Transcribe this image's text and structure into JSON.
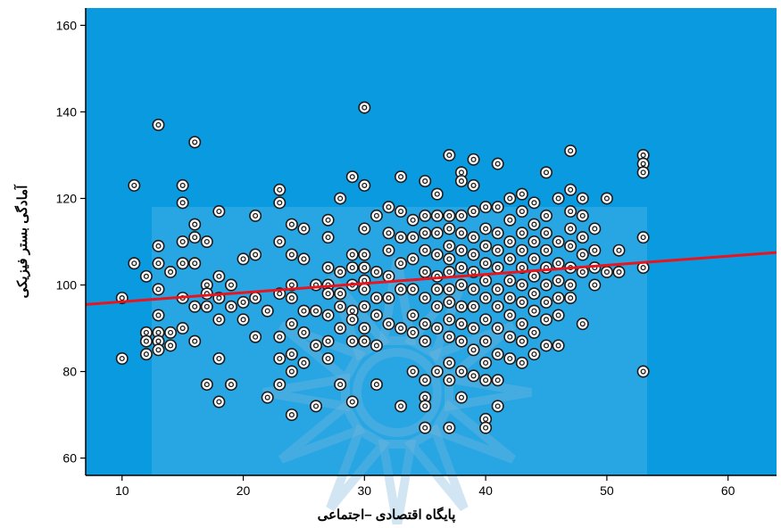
{
  "chart_data": {
    "type": "scatter",
    "title": "",
    "xlabel": "پایگاه اقتصادی –اجتماعی",
    "ylabel": "آمادگی بستر فیزیکی",
    "xlim": [
      7,
      64
    ],
    "ylim": [
      56,
      164
    ],
    "x_ticks": [
      10,
      20,
      30,
      40,
      50,
      60
    ],
    "y_ticks": [
      60,
      80,
      100,
      120,
      140,
      160
    ],
    "grid": false,
    "legend": "none",
    "colors": {
      "plot_background": "#0a9ae0",
      "marker_fill": "#ffffff",
      "marker_stroke": "#1a1a1a",
      "fit_line": "#e8141e",
      "axis": "#000000"
    },
    "fit_line": {
      "x": [
        7,
        64
      ],
      "y": [
        95.5,
        107.5
      ]
    },
    "points": [
      [
        10,
        97
      ],
      [
        10,
        83
      ],
      [
        11,
        123
      ],
      [
        11,
        105
      ],
      [
        12,
        102
      ],
      [
        12,
        89
      ],
      [
        12,
        87
      ],
      [
        12,
        84
      ],
      [
        13,
        137
      ],
      [
        13,
        109
      ],
      [
        13,
        105
      ],
      [
        13,
        99
      ],
      [
        13,
        93
      ],
      [
        13,
        89
      ],
      [
        13,
        87
      ],
      [
        13,
        85
      ],
      [
        14,
        103
      ],
      [
        14,
        89
      ],
      [
        14,
        86
      ],
      [
        15,
        123
      ],
      [
        15,
        119
      ],
      [
        15,
        110
      ],
      [
        15,
        105
      ],
      [
        15,
        97
      ],
      [
        15,
        90
      ],
      [
        16,
        133
      ],
      [
        16,
        114
      ],
      [
        16,
        111
      ],
      [
        16,
        105
      ],
      [
        16,
        95
      ],
      [
        16,
        87
      ],
      [
        17,
        110
      ],
      [
        17,
        100
      ],
      [
        17,
        98
      ],
      [
        17,
        95
      ],
      [
        17,
        77
      ],
      [
        18,
        117
      ],
      [
        18,
        102
      ],
      [
        18,
        97
      ],
      [
        18,
        92
      ],
      [
        18,
        83
      ],
      [
        18,
        73
      ],
      [
        19,
        100
      ],
      [
        19,
        95
      ],
      [
        19,
        77
      ],
      [
        20,
        106
      ],
      [
        20,
        96
      ],
      [
        20,
        92
      ],
      [
        21,
        116
      ],
      [
        21,
        107
      ],
      [
        21,
        97
      ],
      [
        21,
        88
      ],
      [
        22,
        94
      ],
      [
        22,
        74
      ],
      [
        23,
        122
      ],
      [
        23,
        119
      ],
      [
        23,
        110
      ],
      [
        23,
        98
      ],
      [
        23,
        88
      ],
      [
        23,
        83
      ],
      [
        23,
        77
      ],
      [
        24,
        114
      ],
      [
        24,
        107
      ],
      [
        24,
        100
      ],
      [
        24,
        97
      ],
      [
        24,
        91
      ],
      [
        24,
        84
      ],
      [
        24,
        80
      ],
      [
        24,
        70
      ],
      [
        25,
        113
      ],
      [
        25,
        106
      ],
      [
        25,
        94
      ],
      [
        25,
        89
      ],
      [
        25,
        82
      ],
      [
        26,
        100
      ],
      [
        26,
        94
      ],
      [
        26,
        86
      ],
      [
        26,
        72
      ],
      [
        27,
        115
      ],
      [
        27,
        111
      ],
      [
        27,
        104
      ],
      [
        27,
        100
      ],
      [
        27,
        98
      ],
      [
        27,
        93
      ],
      [
        27,
        87
      ],
      [
        27,
        83
      ],
      [
        28,
        120
      ],
      [
        28,
        103
      ],
      [
        28,
        98
      ],
      [
        28,
        95
      ],
      [
        28,
        90
      ],
      [
        28,
        77
      ],
      [
        29,
        125
      ],
      [
        29,
        107
      ],
      [
        29,
        104
      ],
      [
        29,
        100
      ],
      [
        29,
        94
      ],
      [
        29,
        92
      ],
      [
        29,
        87
      ],
      [
        29,
        73
      ],
      [
        30,
        141
      ],
      [
        30,
        123
      ],
      [
        30,
        113
      ],
      [
        30,
        107
      ],
      [
        30,
        104
      ],
      [
        30,
        101
      ],
      [
        30,
        99
      ],
      [
        30,
        95
      ],
      [
        30,
        90
      ],
      [
        30,
        87
      ],
      [
        31,
        116
      ],
      [
        31,
        103
      ],
      [
        31,
        97
      ],
      [
        31,
        93
      ],
      [
        31,
        86
      ],
      [
        31,
        77
      ],
      [
        32,
        118
      ],
      [
        32,
        112
      ],
      [
        32,
        108
      ],
      [
        32,
        102
      ],
      [
        32,
        97
      ],
      [
        32,
        91
      ],
      [
        33,
        125
      ],
      [
        33,
        117
      ],
      [
        33,
        111
      ],
      [
        33,
        105
      ],
      [
        33,
        99
      ],
      [
        33,
        90
      ],
      [
        33,
        72
      ],
      [
        34,
        115
      ],
      [
        34,
        111
      ],
      [
        34,
        106
      ],
      [
        34,
        99
      ],
      [
        34,
        93
      ],
      [
        34,
        89
      ],
      [
        34,
        80
      ],
      [
        35,
        124
      ],
      [
        35,
        116
      ],
      [
        35,
        112
      ],
      [
        35,
        108
      ],
      [
        35,
        103
      ],
      [
        35,
        97
      ],
      [
        35,
        91
      ],
      [
        35,
        87
      ],
      [
        35,
        78
      ],
      [
        35,
        74
      ],
      [
        35,
        72
      ],
      [
        35,
        67
      ],
      [
        36,
        121
      ],
      [
        36,
        116
      ],
      [
        36,
        112
      ],
      [
        36,
        107
      ],
      [
        36,
        102
      ],
      [
        36,
        99
      ],
      [
        36,
        95
      ],
      [
        36,
        90
      ],
      [
        36,
        80
      ],
      [
        37,
        130
      ],
      [
        37,
        116
      ],
      [
        37,
        113
      ],
      [
        37,
        109
      ],
      [
        37,
        106
      ],
      [
        37,
        103
      ],
      [
        37,
        99
      ],
      [
        37,
        96
      ],
      [
        37,
        92
      ],
      [
        37,
        88
      ],
      [
        37,
        82
      ],
      [
        37,
        78
      ],
      [
        37,
        67
      ],
      [
        38,
        126
      ],
      [
        38,
        124
      ],
      [
        38,
        116
      ],
      [
        38,
        112
      ],
      [
        38,
        108
      ],
      [
        38,
        104
      ],
      [
        38,
        100
      ],
      [
        38,
        95
      ],
      [
        38,
        91
      ],
      [
        38,
        87
      ],
      [
        38,
        80
      ],
      [
        38,
        74
      ],
      [
        39,
        129
      ],
      [
        39,
        123
      ],
      [
        39,
        117
      ],
      [
        39,
        111
      ],
      [
        39,
        107
      ],
      [
        39,
        103
      ],
      [
        39,
        99
      ],
      [
        39,
        95
      ],
      [
        39,
        90
      ],
      [
        39,
        85
      ],
      [
        39,
        79
      ],
      [
        40,
        118
      ],
      [
        40,
        113
      ],
      [
        40,
        109
      ],
      [
        40,
        105
      ],
      [
        40,
        101
      ],
      [
        40,
        97
      ],
      [
        40,
        92
      ],
      [
        40,
        87
      ],
      [
        40,
        82
      ],
      [
        40,
        78
      ],
      [
        40,
        69
      ],
      [
        40,
        67
      ],
      [
        41,
        128
      ],
      [
        41,
        118
      ],
      [
        41,
        112
      ],
      [
        41,
        108
      ],
      [
        41,
        104
      ],
      [
        41,
        99
      ],
      [
        41,
        95
      ],
      [
        41,
        90
      ],
      [
        41,
        84
      ],
      [
        41,
        78
      ],
      [
        41,
        72
      ],
      [
        42,
        120
      ],
      [
        42,
        115
      ],
      [
        42,
        110
      ],
      [
        42,
        106
      ],
      [
        42,
        101
      ],
      [
        42,
        97
      ],
      [
        42,
        93
      ],
      [
        42,
        88
      ],
      [
        42,
        83
      ],
      [
        43,
        121
      ],
      [
        43,
        117
      ],
      [
        43,
        112
      ],
      [
        43,
        108
      ],
      [
        43,
        104
      ],
      [
        43,
        100
      ],
      [
        43,
        96
      ],
      [
        43,
        91
      ],
      [
        43,
        87
      ],
      [
        43,
        82
      ],
      [
        44,
        119
      ],
      [
        44,
        114
      ],
      [
        44,
        110
      ],
      [
        44,
        106
      ],
      [
        44,
        102
      ],
      [
        44,
        98
      ],
      [
        44,
        94
      ],
      [
        44,
        89
      ],
      [
        44,
        84
      ],
      [
        45,
        126
      ],
      [
        45,
        116
      ],
      [
        45,
        112
      ],
      [
        45,
        108
      ],
      [
        45,
        104
      ],
      [
        45,
        100
      ],
      [
        45,
        96
      ],
      [
        45,
        92
      ],
      [
        45,
        86
      ],
      [
        46,
        120
      ],
      [
        46,
        110
      ],
      [
        46,
        105
      ],
      [
        46,
        101
      ],
      [
        46,
        97
      ],
      [
        46,
        93
      ],
      [
        46,
        86
      ],
      [
        47,
        131
      ],
      [
        47,
        122
      ],
      [
        47,
        117
      ],
      [
        47,
        113
      ],
      [
        47,
        109
      ],
      [
        47,
        104
      ],
      [
        47,
        100
      ],
      [
        47,
        97
      ],
      [
        48,
        120
      ],
      [
        48,
        116
      ],
      [
        48,
        111
      ],
      [
        48,
        107
      ],
      [
        48,
        103
      ],
      [
        48,
        91
      ],
      [
        49,
        113
      ],
      [
        49,
        108
      ],
      [
        49,
        104
      ],
      [
        49,
        100
      ],
      [
        50,
        120
      ],
      [
        50,
        103
      ],
      [
        51,
        108
      ],
      [
        51,
        103
      ],
      [
        53,
        130
      ],
      [
        53,
        128
      ],
      [
        53,
        126
      ],
      [
        53,
        111
      ],
      [
        53,
        104
      ],
      [
        53,
        80
      ]
    ]
  }
}
